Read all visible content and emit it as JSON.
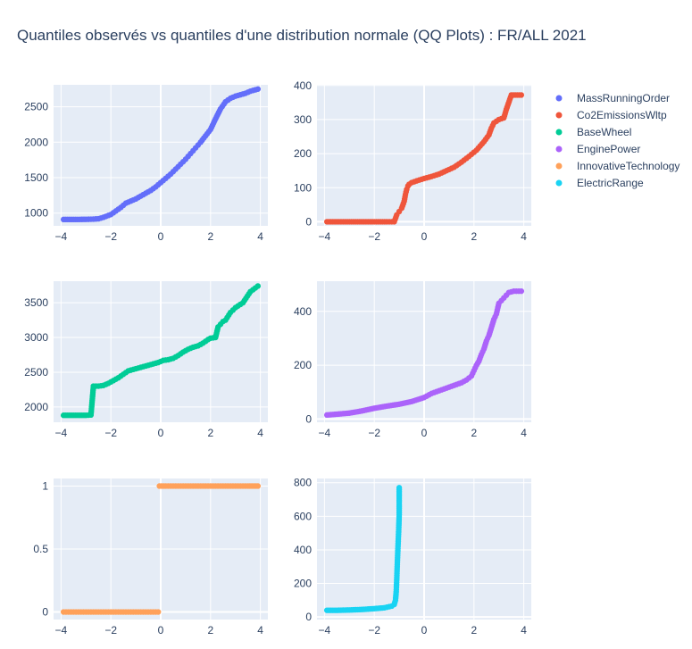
{
  "title": "Quantiles observés vs quantiles d'une distribution normale (QQ Plots) : FR/ALL 2021",
  "chart_data": [
    {
      "type": "scatter",
      "name": "MassRunningOrder",
      "color": "#636efa",
      "xlim": [
        -4.3,
        4.3
      ],
      "ylim": [
        820,
        2810
      ],
      "xticks": [
        -4,
        -2,
        0,
        2,
        4
      ],
      "yticks": [
        1000,
        1500,
        2000,
        2500
      ],
      "x": [
        -3.9,
        -3.5,
        -3.0,
        -2.7,
        -2.5,
        -2.3,
        -2.0,
        -1.8,
        -1.6,
        -1.4,
        -1.2,
        -1.0,
        -0.8,
        -0.6,
        -0.4,
        -0.2,
        0.0,
        0.2,
        0.4,
        0.6,
        0.8,
        1.0,
        1.2,
        1.4,
        1.6,
        1.8,
        2.0,
        2.2,
        2.4,
        2.6,
        2.8,
        3.0,
        3.2,
        3.4,
        3.6,
        3.9
      ],
      "y": [
        910,
        910,
        912,
        915,
        920,
        940,
        980,
        1030,
        1080,
        1140,
        1170,
        1200,
        1240,
        1280,
        1320,
        1370,
        1430,
        1490,
        1550,
        1620,
        1690,
        1760,
        1840,
        1920,
        2000,
        2090,
        2180,
        2330,
        2470,
        2570,
        2620,
        2650,
        2670,
        2690,
        2720,
        2750
      ]
    },
    {
      "type": "scatter",
      "name": "Co2EmissionsWltp",
      "color": "#ef553b",
      "xlim": [
        -4.3,
        4.3
      ],
      "ylim": [
        -12,
        402
      ],
      "xticks": [
        -4,
        -2,
        0,
        2,
        4
      ],
      "yticks": [
        0,
        100,
        200,
        300,
        400
      ],
      "x": [
        -3.9,
        -3.5,
        -3.0,
        -2.5,
        -2.0,
        -1.5,
        -1.2,
        -1.1,
        -1.0,
        -0.9,
        -0.8,
        -0.75,
        -0.7,
        -0.65,
        -0.6,
        -0.5,
        -0.3,
        0.0,
        0.3,
        0.6,
        0.9,
        1.2,
        1.5,
        1.8,
        2.1,
        2.4,
        2.6,
        2.7,
        2.8,
        3.0,
        3.2,
        3.3,
        3.5,
        3.9
      ],
      "y": [
        0,
        0,
        0,
        0,
        0,
        0,
        0,
        20,
        30,
        40,
        60,
        80,
        95,
        105,
        110,
        115,
        120,
        127,
        133,
        140,
        150,
        160,
        175,
        192,
        210,
        235,
        255,
        275,
        290,
        300,
        305,
        330,
        372,
        372
      ]
    },
    {
      "type": "scatter",
      "name": "BaseWheel",
      "color": "#00cc96",
      "xlim": [
        -4.3,
        4.3
      ],
      "ylim": [
        1780,
        3810
      ],
      "xticks": [
        -4,
        -2,
        0,
        2,
        4
      ],
      "yticks": [
        2000,
        2500,
        3000,
        3500
      ],
      "x": [
        -3.9,
        -3.5,
        -3.0,
        -2.8,
        -2.7,
        -2.5,
        -2.3,
        -2.1,
        -1.9,
        -1.7,
        -1.5,
        -1.3,
        -1.1,
        -0.9,
        -0.7,
        -0.5,
        -0.3,
        -0.1,
        0.1,
        0.3,
        0.5,
        0.7,
        0.9,
        1.1,
        1.3,
        1.5,
        1.7,
        1.9,
        2.0,
        2.2,
        2.3,
        2.5,
        2.6,
        2.8,
        3.0,
        3.3,
        3.6,
        3.9
      ],
      "y": [
        1880,
        1880,
        1880,
        1885,
        2300,
        2300,
        2310,
        2340,
        2380,
        2420,
        2470,
        2520,
        2540,
        2560,
        2580,
        2600,
        2620,
        2640,
        2670,
        2680,
        2700,
        2740,
        2790,
        2830,
        2860,
        2880,
        2920,
        2970,
        2990,
        3000,
        3150,
        3230,
        3250,
        3360,
        3430,
        3500,
        3660,
        3740
      ]
    },
    {
      "type": "scatter",
      "name": "EnginePower",
      "color": "#ab63fa",
      "xlim": [
        -4.3,
        4.3
      ],
      "ylim": [
        -12,
        512
      ],
      "xticks": [
        -4,
        -2,
        0,
        2,
        4
      ],
      "yticks": [
        0,
        200,
        400
      ],
      "x": [
        -3.9,
        -3.5,
        -3.0,
        -2.5,
        -2.0,
        -1.5,
        -1.0,
        -0.5,
        0.0,
        0.3,
        0.6,
        0.9,
        1.2,
        1.5,
        1.7,
        1.9,
        2.0,
        2.1,
        2.2,
        2.3,
        2.4,
        2.5,
        2.6,
        2.7,
        2.8,
        2.9,
        3.0,
        3.2,
        3.4,
        3.6,
        3.9
      ],
      "y": [
        15,
        18,
        22,
        30,
        40,
        48,
        55,
        65,
        80,
        95,
        105,
        115,
        125,
        135,
        145,
        160,
        180,
        200,
        215,
        240,
        260,
        290,
        310,
        340,
        370,
        390,
        430,
        450,
        470,
        475,
        475
      ]
    },
    {
      "type": "scatter",
      "name": "InnovativeTechnology",
      "color": "#ffa15a",
      "xlim": [
        -4.3,
        4.3
      ],
      "ylim": [
        -0.06,
        1.06
      ],
      "xticks": [
        -4,
        -2,
        0,
        2,
        4
      ],
      "yticks": [
        0,
        0.5,
        1
      ],
      "x": [
        -3.9,
        -3.6,
        -3.3,
        -3.0,
        -2.7,
        -2.4,
        -2.1,
        -1.8,
        -1.5,
        -1.2,
        -0.9,
        -0.6,
        -0.3,
        -0.1,
        -0.05,
        0.2,
        0.5,
        0.8,
        1.1,
        1.4,
        1.7,
        2.0,
        2.3,
        2.6,
        2.9,
        3.2,
        3.5,
        3.9
      ],
      "y": [
        0,
        0,
        0,
        0,
        0,
        0,
        0,
        0,
        0,
        0,
        0,
        0,
        0,
        0,
        1,
        1,
        1,
        1,
        1,
        1,
        1,
        1,
        1,
        1,
        1,
        1,
        1,
        1
      ]
    },
    {
      "type": "scatter",
      "name": "ElectricRange",
      "color": "#19d3f3",
      "xlim": [
        -4.3,
        4.3
      ],
      "ylim": [
        -15,
        825
      ],
      "xticks": [
        -4,
        -2,
        0,
        2,
        4
      ],
      "yticks": [
        0,
        200,
        400,
        600,
        800
      ],
      "x": [
        -3.9,
        -3.5,
        -3.0,
        -2.5,
        -2.0,
        -1.6,
        -1.3,
        -1.2,
        -1.15,
        -1.12,
        -1.1,
        -1.08,
        -1.06,
        -1.04,
        -1.02,
        -1.0,
        -1.0
      ],
      "y": [
        40,
        40,
        42,
        45,
        50,
        55,
        65,
        75,
        100,
        150,
        220,
        300,
        380,
        450,
        520,
        610,
        770
      ]
    }
  ]
}
